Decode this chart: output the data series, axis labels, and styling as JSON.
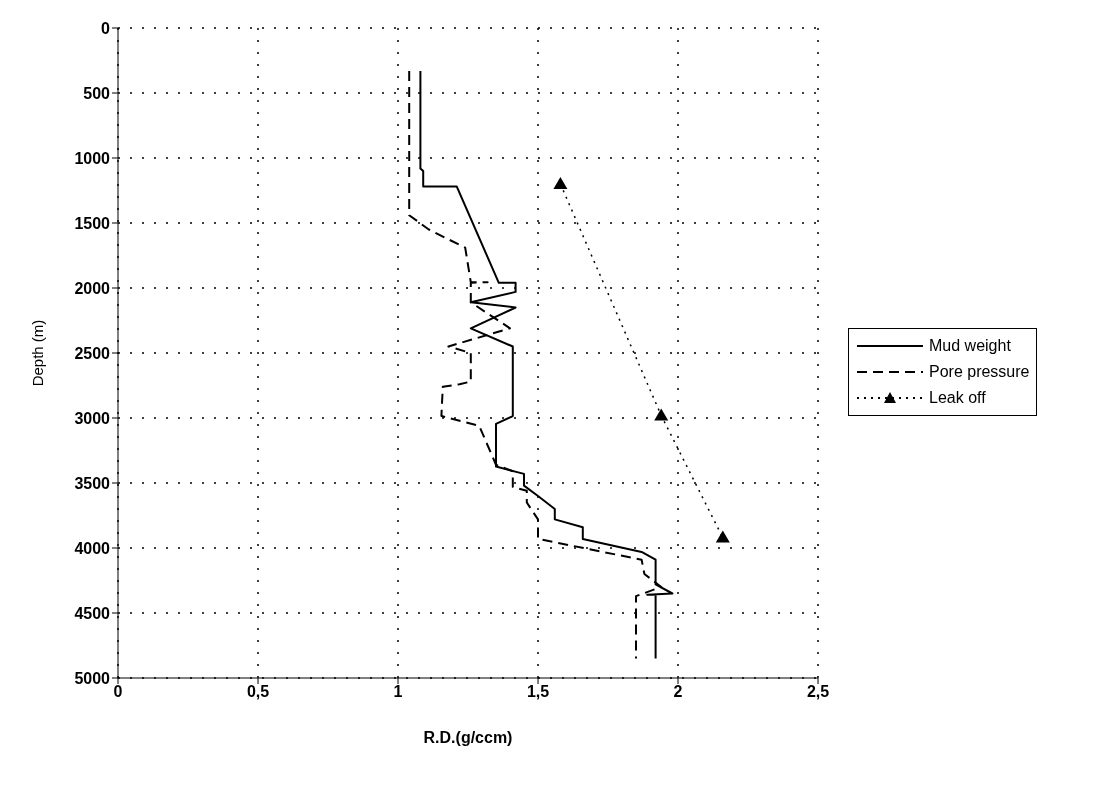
{
  "chart_data": {
    "type": "line",
    "xlabel": "R.D.(g/ccm)",
    "ylabel": "Depth (m)",
    "xlim": [
      0,
      2.5
    ],
    "xticks": [
      0,
      {
        "value": 0.5,
        "label": "0,5"
      },
      1,
      {
        "value": 1.5,
        "label": "1,5"
      },
      2,
      {
        "value": 2.5,
        "label": "2,5"
      }
    ],
    "ylim": [
      5000,
      0
    ],
    "yticks": [
      0,
      500,
      1000,
      1500,
      2000,
      2500,
      3000,
      3500,
      4000,
      4500,
      5000
    ],
    "grid": true,
    "legend": "right",
    "marker": "none",
    "series": [
      {
        "name": "Mud weight",
        "color": "#000000",
        "line_style": "solid",
        "x": [
          1.08,
          1.08,
          1.09,
          1.09,
          1.21,
          1.36,
          1.42,
          1.42,
          1.26,
          1.42,
          1.26,
          1.41,
          1.41,
          1.35,
          1.35,
          1.45,
          1.45,
          1.5,
          1.56,
          1.56,
          1.66,
          1.66,
          1.87,
          1.92,
          1.92,
          1.98,
          1.89,
          1.92,
          1.92
        ],
        "values": [
          330,
          1080,
          1100,
          1220,
          1220,
          1960,
          1960,
          2030,
          2110,
          2150,
          2310,
          2450,
          2985,
          3045,
          3373,
          3430,
          3520,
          3600,
          3700,
          3780,
          3840,
          3930,
          4030,
          4090,
          4280,
          4350,
          4360,
          4360,
          4850
        ]
      },
      {
        "name": "Pore pressure",
        "color": "#000000",
        "line_style": "dashed",
        "x": [
          1.04,
          1.04,
          1.11,
          1.24,
          1.26,
          1.32,
          1.26,
          1.26,
          1.4,
          1.18,
          1.26,
          1.26,
          1.22,
          1.16,
          1.155,
          1.29,
          1.35,
          1.41,
          1.41,
          1.46,
          1.46,
          1.5,
          1.5,
          1.87,
          1.88,
          1.94,
          1.85,
          1.85
        ],
        "values": [
          330,
          1440,
          1550,
          1690,
          1955,
          1955,
          1960,
          2110,
          2310,
          2450,
          2500,
          2720,
          2740,
          2760,
          2985,
          3060,
          3360,
          3410,
          3530,
          3560,
          3650,
          3780,
          3930,
          4090,
          4200,
          4300,
          4370,
          4850
        ]
      },
      {
        "name": "Leak off",
        "color": "#000000",
        "line_style": "dotted",
        "marker": "triangle",
        "x": [
          1.58,
          1.94,
          2.16
        ],
        "values": [
          1200,
          2980,
          3920
        ]
      }
    ]
  }
}
